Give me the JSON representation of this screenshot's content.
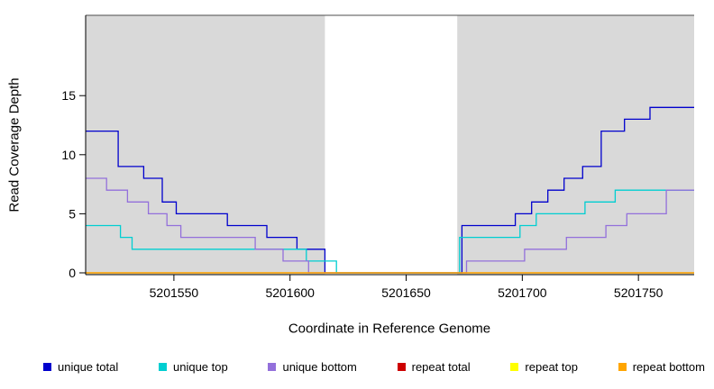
{
  "chart_data": {
    "type": "line",
    "title": "",
    "xlabel": "Coordinate in Reference Genome",
    "ylabel": "Read Coverage Depth",
    "xlim": [
      5201512,
      5201774
    ],
    "ylim": [
      0,
      21.8
    ],
    "x_ticks": [
      5201550,
      5201600,
      5201650,
      5201700,
      5201750
    ],
    "y_ticks": [
      0,
      5,
      10,
      15
    ],
    "shaded_regions": [
      [
        5201512,
        5201615
      ],
      [
        5201672,
        5201774
      ]
    ],
    "gap_region": [
      5201615,
      5201672
    ],
    "colors": {
      "shading": "#d9d9d9",
      "axis": "#000000",
      "border": "#4d4d4d",
      "background": "#ffffff"
    },
    "series": [
      {
        "name": "unique total",
        "color": "#0000CD",
        "steps": [
          [
            5201512,
            12
          ],
          [
            5201526,
            9
          ],
          [
            5201537,
            8
          ],
          [
            5201545,
            6
          ],
          [
            5201551,
            5
          ],
          [
            5201573,
            4
          ],
          [
            5201590,
            3
          ],
          [
            5201603,
            2
          ],
          [
            5201615,
            0
          ],
          [
            5201674,
            4
          ],
          [
            5201697,
            5
          ],
          [
            5201704,
            6
          ],
          [
            5201711,
            7
          ],
          [
            5201718,
            8
          ],
          [
            5201726,
            9
          ],
          [
            5201734,
            12
          ],
          [
            5201744,
            13
          ],
          [
            5201755,
            14
          ],
          [
            5201774,
            14
          ]
        ]
      },
      {
        "name": "unique top",
        "color": "#00CED1",
        "steps": [
          [
            5201512,
            4
          ],
          [
            5201527,
            3
          ],
          [
            5201532,
            2
          ],
          [
            5201607,
            1
          ],
          [
            5201620,
            0
          ],
          [
            5201673,
            3
          ],
          [
            5201699,
            4
          ],
          [
            5201706,
            5
          ],
          [
            5201727,
            6
          ],
          [
            5201740,
            7
          ],
          [
            5201774,
            7
          ]
        ]
      },
      {
        "name": "unique bottom",
        "color": "#9370DB",
        "steps": [
          [
            5201512,
            8
          ],
          [
            5201521,
            7
          ],
          [
            5201530,
            6
          ],
          [
            5201539,
            5
          ],
          [
            5201547,
            4
          ],
          [
            5201553,
            3
          ],
          [
            5201585,
            2
          ],
          [
            5201597,
            1
          ],
          [
            5201608,
            0
          ],
          [
            5201676,
            1
          ],
          [
            5201701,
            2
          ],
          [
            5201719,
            3
          ],
          [
            5201736,
            4
          ],
          [
            5201745,
            5
          ],
          [
            5201762,
            7
          ],
          [
            5201774,
            7
          ]
        ]
      },
      {
        "name": "repeat total",
        "color": "#CD0000",
        "steps": [
          [
            5201512,
            0
          ],
          [
            5201774,
            0
          ]
        ]
      },
      {
        "name": "repeat top",
        "color": "#FFFF00",
        "steps": [
          [
            5201512,
            0
          ],
          [
            5201774,
            0
          ]
        ]
      },
      {
        "name": "repeat bottom",
        "color": "#FFA500",
        "steps": [
          [
            5201512,
            0
          ],
          [
            5201774,
            0
          ]
        ]
      }
    ],
    "legend": [
      {
        "label": "unique total",
        "color": "#0000CD"
      },
      {
        "label": "unique top",
        "color": "#00CED1"
      },
      {
        "label": "unique bottom",
        "color": "#9370DB"
      },
      {
        "label": "repeat total",
        "color": "#CD0000"
      },
      {
        "label": "repeat top",
        "color": "#FFFF00"
      },
      {
        "label": "repeat bottom",
        "color": "#FFA500"
      }
    ]
  }
}
